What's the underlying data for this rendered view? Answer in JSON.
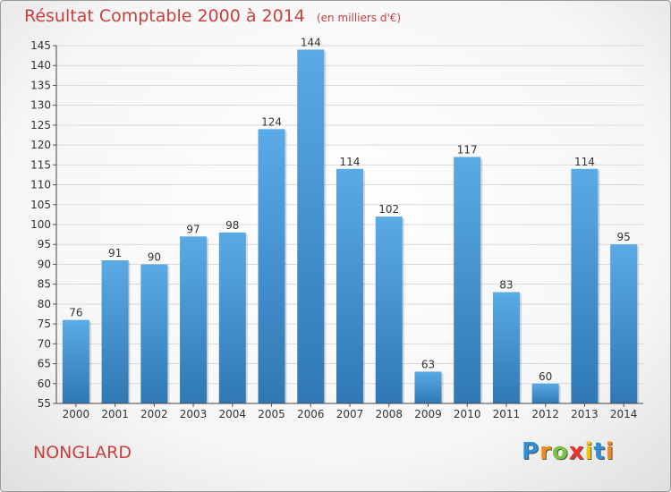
{
  "chart_data": {
    "type": "bar",
    "title": "Résultat Comptable 2000 à 2014",
    "subtitle": "(en milliers d'€)",
    "categories": [
      "2000",
      "2001",
      "2002",
      "2003",
      "2004",
      "2005",
      "2006",
      "2007",
      "2008",
      "2009",
      "2010",
      "2011",
      "2012",
      "2013",
      "2014"
    ],
    "values": [
      76,
      91,
      90,
      97,
      98,
      124,
      144,
      114,
      102,
      63,
      117,
      83,
      60,
      114,
      95
    ],
    "ylim": [
      55,
      145
    ],
    "yticks": [
      55,
      60,
      65,
      70,
      75,
      80,
      85,
      90,
      95,
      100,
      105,
      110,
      115,
      120,
      125,
      130,
      135,
      140,
      145
    ],
    "grid": true,
    "bar_color": "#4f9fde"
  },
  "commune": "NONGLARD",
  "brand": {
    "letters": [
      "P",
      "r",
      "o",
      "x",
      "i",
      "t",
      "i"
    ],
    "colors": [
      "#2e8fd6",
      "#f08a1c",
      "#7cc243",
      "#e8352e",
      "#f5c400",
      "#2e8fd6",
      "#f08a1c"
    ]
  }
}
